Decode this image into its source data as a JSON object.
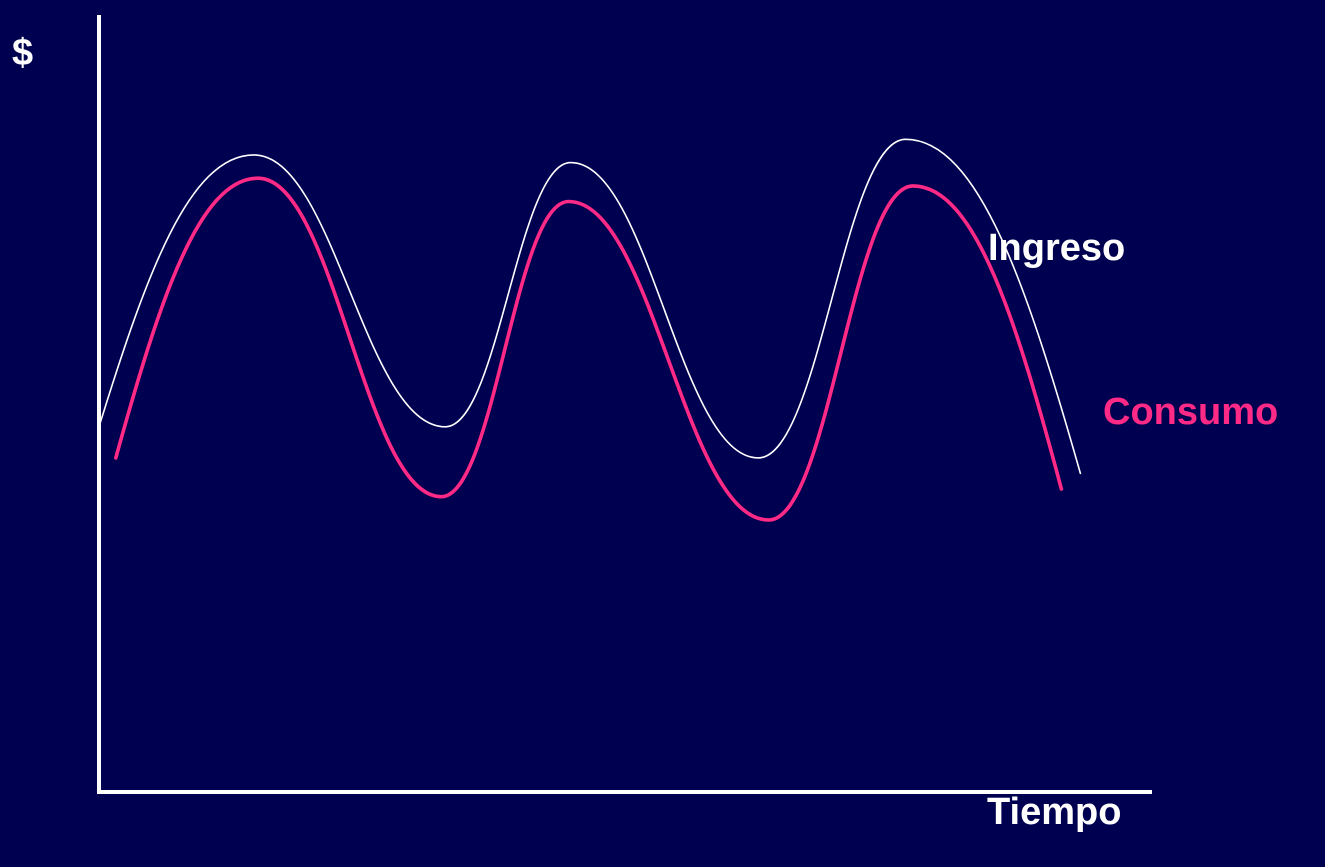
{
  "chart_data": {
    "type": "line",
    "title": "",
    "ylabel": "$",
    "xlabel": "Tiempo",
    "grid": false,
    "legend_placement": "right",
    "x_ticks": [],
    "y_ticks": [],
    "series": [
      {
        "name": "Ingreso",
        "color": "#ffffff",
        "points": [
          [
            0.0,
            0.47
          ],
          [
            0.147,
            0.82
          ],
          [
            0.329,
            0.47
          ],
          [
            0.448,
            0.81
          ],
          [
            0.626,
            0.43
          ],
          [
            0.766,
            0.84
          ],
          [
            0.932,
            0.41
          ]
        ]
      },
      {
        "name": "Consumo",
        "color": "#ff2a86",
        "points": [
          [
            0.016,
            0.43
          ],
          [
            0.151,
            0.79
          ],
          [
            0.325,
            0.38
          ],
          [
            0.446,
            0.76
          ],
          [
            0.636,
            0.35
          ],
          [
            0.773,
            0.78
          ],
          [
            0.914,
            0.39
          ]
        ]
      }
    ]
  },
  "colors": {
    "background": "#000050",
    "axes": "#ffffff"
  }
}
